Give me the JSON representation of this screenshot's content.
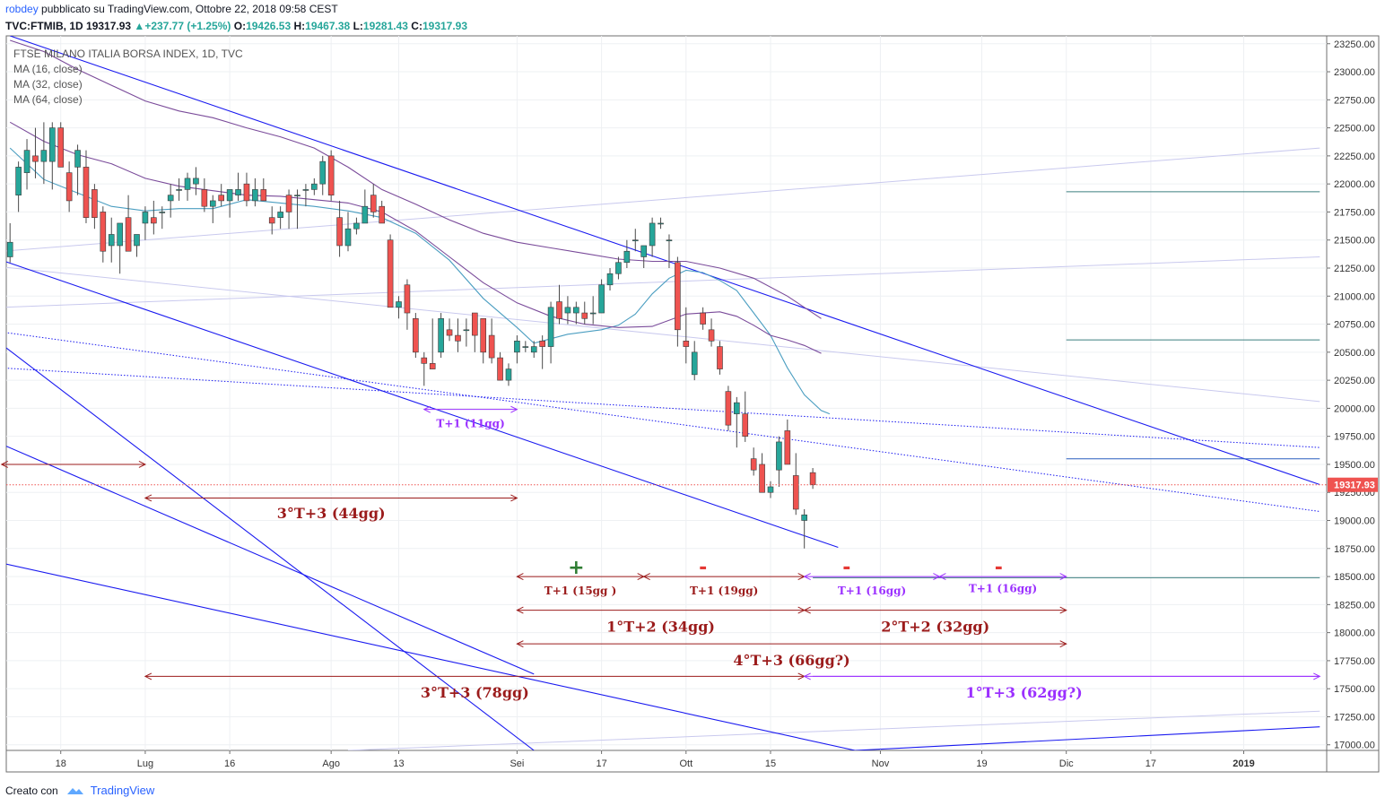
{
  "header": {
    "author": "robdey",
    "published": "pubblicato su TradingView.com, Ottobre 22, 2018 09:58 CEST",
    "symbol": "TVC:FTMIB, 1D",
    "last": "19317.93",
    "change": "+237.77 (+1.25%)",
    "o_label": "O:",
    "o": "19426.53",
    "h_label": "H:",
    "h": "19467.38",
    "l_label": "L:",
    "l": "19281.43",
    "c_label": "C:",
    "c": "19317.93"
  },
  "legend": {
    "title": "FTSE MILANO ITALIA BORSA INDEX, 1D, TVC",
    "ma1": "MA (16, close)",
    "ma2": "MA (32, close)",
    "ma3": "MA (64, close)"
  },
  "footer": {
    "created": "Creato con",
    "brand": "TradingView"
  },
  "colors": {
    "up": "#26a69a",
    "down": "#ef5350",
    "channel": "#1a1af0",
    "label_dark": "#9b1b1b",
    "label_purple": "#9b30ff",
    "ma16": "#4b9ec1",
    "ma32": "#7a4b9a",
    "ma64": "#7a4b9a",
    "last_price": "#ef5350"
  },
  "chart_data": {
    "type": "candlestick",
    "ylim": [
      16950,
      23320
    ],
    "y_ticks": [
      "23250.00",
      "23000.00",
      "22750.00",
      "22500.00",
      "22250.00",
      "22000.00",
      "21750.00",
      "21500.00",
      "21250.00",
      "21000.00",
      "20750.00",
      "20500.00",
      "20250.00",
      "20000.00",
      "19750.00",
      "19500.00",
      "19250.00",
      "19000.00",
      "18750.00",
      "18500.00",
      "18250.00",
      "18000.00",
      "17750.00",
      "17500.00",
      "17250.00",
      "17000.00"
    ],
    "x_ticks": [
      {
        "label": "18",
        "i": 6
      },
      {
        "label": "Lug",
        "i": 16
      },
      {
        "label": "16",
        "i": 26
      },
      {
        "label": "Ago",
        "i": 38
      },
      {
        "label": "13",
        "i": 46
      },
      {
        "label": "Sei",
        "i": 60
      },
      {
        "label": "17",
        "i": 70
      },
      {
        "label": "Ott",
        "i": 80
      },
      {
        "label": "15",
        "i": 90
      },
      {
        "label": "Nov",
        "i": 103
      },
      {
        "label": "19",
        "i": 115
      },
      {
        "label": "Dic",
        "i": 125
      },
      {
        "label": "17",
        "i": 135
      },
      {
        "label": "2019",
        "i": 146
      }
    ],
    "last_price": 19317.93,
    "last_price_label": "19317.93",
    "candles": [
      [
        21350,
        21650,
        21300,
        21480
      ],
      [
        21900,
        22200,
        21750,
        22150
      ],
      [
        22100,
        22400,
        21950,
        22300
      ],
      [
        22250,
        22500,
        22050,
        22200
      ],
      [
        22200,
        22550,
        22000,
        22300
      ],
      [
        22200,
        22550,
        21950,
        22500
      ],
      [
        22500,
        22550,
        22150,
        22150
      ],
      [
        22100,
        22200,
        21750,
        21850
      ],
      [
        22150,
        22350,
        21900,
        22300
      ],
      [
        22150,
        22300,
        21650,
        21700
      ],
      [
        21950,
        22000,
        21600,
        21700
      ],
      [
        21750,
        21800,
        21300,
        21400
      ],
      [
        21450,
        21700,
        21300,
        21550
      ],
      [
        21450,
        21600,
        21200,
        21650
      ],
      [
        21700,
        21900,
        21400,
        21400
      ],
      [
        21450,
        21550,
        21350,
        21550
      ],
      [
        21650,
        21800,
        21500,
        21750
      ],
      [
        21700,
        21850,
        21550,
        21650
      ],
      [
        21750,
        21800,
        21600,
        21750
      ],
      [
        21850,
        22000,
        21700,
        21900
      ],
      [
        21950,
        22050,
        21850,
        21950
      ],
      [
        21950,
        22100,
        21850,
        22050
      ],
      [
        22000,
        22150,
        21900,
        22050
      ],
      [
        21950,
        22050,
        21750,
        21800
      ],
      [
        21800,
        21900,
        21650,
        21850
      ],
      [
        21900,
        22000,
        21800,
        21850
      ],
      [
        21850,
        21950,
        21700,
        21950
      ],
      [
        21900,
        22100,
        21850,
        21950
      ],
      [
        22000,
        22100,
        21800,
        21850
      ],
      [
        21850,
        22050,
        21800,
        21950
      ],
      [
        21950,
        22050,
        21850,
        21850
      ],
      [
        21700,
        21800,
        21550,
        21650
      ],
      [
        21700,
        21800,
        21600,
        21750
      ],
      [
        21900,
        21950,
        21600,
        21750
      ],
      [
        21900,
        21950,
        21600,
        21900
      ],
      [
        21950,
        22000,
        21800,
        21950
      ],
      [
        21950,
        22050,
        21900,
        22000
      ],
      [
        22000,
        22250,
        21900,
        22200
      ],
      [
        22250,
        22300,
        21850,
        21900
      ],
      [
        21700,
        21850,
        21350,
        21450
      ],
      [
        21450,
        21750,
        21400,
        21600
      ],
      [
        21600,
        21700,
        21550,
        21650
      ],
      [
        21650,
        21950,
        21650,
        21800
      ],
      [
        21900,
        22000,
        21700,
        21750
      ],
      [
        21800,
        21850,
        21650,
        21650
      ],
      [
        21500,
        21550,
        20900,
        20900
      ],
      [
        20900,
        21000,
        20800,
        20950
      ],
      [
        21100,
        21150,
        20700,
        20850
      ],
      [
        20800,
        20850,
        20450,
        20500
      ],
      [
        20450,
        20500,
        20200,
        20400
      ],
      [
        20400,
        20800,
        20350,
        20350
      ],
      [
        20500,
        20850,
        20450,
        20800
      ],
      [
        20700,
        20800,
        20600,
        20650
      ],
      [
        20650,
        20800,
        20500,
        20600
      ],
      [
        20700,
        20800,
        20550,
        20700
      ],
      [
        20850,
        20850,
        20500,
        20650
      ],
      [
        20800,
        20800,
        20400,
        20500
      ],
      [
        20650,
        20800,
        20400,
        20450
      ],
      [
        20450,
        20500,
        20250,
        20250
      ],
      [
        20250,
        20400,
        20200,
        20350
      ],
      [
        20500,
        20650,
        20400,
        20600
      ],
      [
        20550,
        20600,
        20500,
        20550
      ],
      [
        20500,
        20600,
        20450,
        20550
      ],
      [
        20600,
        20650,
        20350,
        20550
      ],
      [
        20550,
        20950,
        20400,
        20900
      ],
      [
        20950,
        21100,
        20750,
        20800
      ],
      [
        20850,
        21000,
        20750,
        20900
      ],
      [
        20850,
        20950,
        20750,
        20900
      ],
      [
        20850,
        20950,
        20750,
        20800
      ],
      [
        20850,
        21000,
        20750,
        20850
      ],
      [
        20850,
        21150,
        20850,
        21100
      ],
      [
        21100,
        21250,
        21050,
        21200
      ],
      [
        21200,
        21350,
        21150,
        21300
      ],
      [
        21300,
        21500,
        21250,
        21400
      ],
      [
        21500,
        21600,
        21400,
        21500
      ],
      [
        21350,
        21450,
        21250,
        21450
      ],
      [
        21450,
        21700,
        21350,
        21650
      ],
      [
        21650,
        21700,
        21600,
        21650
      ],
      [
        21500,
        21550,
        21250,
        21500
      ],
      [
        21300,
        21350,
        20550,
        20700
      ],
      [
        20600,
        20900,
        20400,
        20550
      ],
      [
        20300,
        20600,
        20250,
        20500
      ],
      [
        20850,
        20900,
        20700,
        20750
      ],
      [
        20700,
        20800,
        20550,
        20600
      ],
      [
        20550,
        20600,
        20300,
        20350
      ],
      [
        20150,
        20200,
        19800,
        19850
      ],
      [
        19950,
        20100,
        19650,
        20050
      ],
      [
        19950,
        20150,
        19700,
        19750
      ],
      [
        19550,
        19650,
        19400,
        19450
      ],
      [
        19500,
        19600,
        19250,
        19250
      ],
      [
        19250,
        19350,
        19200,
        19300
      ],
      [
        19450,
        19750,
        19300,
        19700
      ],
      [
        19800,
        19900,
        19500,
        19500
      ],
      [
        19400,
        19600,
        19050,
        19100
      ],
      [
        19000,
        19100,
        18750,
        19050
      ],
      [
        19426.53,
        19467.38,
        19281.43,
        19317.93
      ]
    ],
    "ma": [
      {
        "name": "MA (16, close)",
        "color": "#4b9ec1",
        "points": [
          [
            0,
            22320
          ],
          [
            2,
            22180
          ],
          [
            4,
            22040
          ],
          [
            8,
            21920
          ],
          [
            12,
            21800
          ],
          [
            16,
            21760
          ],
          [
            20,
            21780
          ],
          [
            24,
            21780
          ],
          [
            28,
            21860
          ],
          [
            32,
            21830
          ],
          [
            36,
            21800
          ],
          [
            40,
            21760
          ],
          [
            44,
            21700
          ],
          [
            48,
            21560
          ],
          [
            52,
            21320
          ],
          [
            56,
            20980
          ],
          [
            60,
            20720
          ],
          [
            62,
            20580
          ],
          [
            64,
            20620
          ],
          [
            66,
            20660
          ],
          [
            68,
            20680
          ],
          [
            70,
            20700
          ],
          [
            72,
            20740
          ],
          [
            74,
            20840
          ],
          [
            76,
            21020
          ],
          [
            78,
            21160
          ],
          [
            80,
            21230
          ],
          [
            82,
            21210
          ],
          [
            84,
            21140
          ],
          [
            86,
            21050
          ],
          [
            88,
            20850
          ],
          [
            90,
            20650
          ],
          [
            92,
            20360
          ],
          [
            94,
            20120
          ],
          [
            96,
            19980
          ],
          [
            97,
            19950
          ]
        ]
      },
      {
        "name": "MA (32, close)",
        "color": "#7a4b9a",
        "points": [
          [
            0,
            22550
          ],
          [
            4,
            22380
          ],
          [
            8,
            22260
          ],
          [
            12,
            22180
          ],
          [
            16,
            22050
          ],
          [
            20,
            21980
          ],
          [
            24,
            21940
          ],
          [
            28,
            21900
          ],
          [
            32,
            21890
          ],
          [
            36,
            21860
          ],
          [
            40,
            21830
          ],
          [
            44,
            21750
          ],
          [
            48,
            21580
          ],
          [
            52,
            21350
          ],
          [
            56,
            21120
          ],
          [
            60,
            20940
          ],
          [
            64,
            20820
          ],
          [
            68,
            20750
          ],
          [
            72,
            20720
          ],
          [
            76,
            20730
          ],
          [
            80,
            20840
          ],
          [
            84,
            20860
          ],
          [
            86,
            20820
          ],
          [
            88,
            20740
          ],
          [
            90,
            20650
          ],
          [
            92,
            20610
          ],
          [
            94,
            20560
          ],
          [
            96,
            20490
          ]
        ]
      },
      {
        "name": "MA (64, close)",
        "color": "#7a4b9a",
        "points": [
          [
            0,
            23280
          ],
          [
            4,
            23180
          ],
          [
            8,
            23020
          ],
          [
            12,
            22880
          ],
          [
            16,
            22740
          ],
          [
            20,
            22650
          ],
          [
            24,
            22590
          ],
          [
            28,
            22500
          ],
          [
            32,
            22420
          ],
          [
            36,
            22320
          ],
          [
            40,
            22150
          ],
          [
            44,
            21950
          ],
          [
            48,
            21820
          ],
          [
            52,
            21680
          ],
          [
            56,
            21560
          ],
          [
            60,
            21480
          ],
          [
            64,
            21430
          ],
          [
            68,
            21380
          ],
          [
            72,
            21330
          ],
          [
            76,
            21310
          ],
          [
            80,
            21310
          ],
          [
            84,
            21250
          ],
          [
            88,
            21160
          ],
          [
            92,
            21000
          ],
          [
            96,
            20800
          ]
        ]
      }
    ],
    "channels": [
      {
        "i1": 0,
        "p1": 23320,
        "i2": 155,
        "p2": 19320,
        "style": "solid"
      },
      {
        "i1": -1,
        "p1": 21320,
        "i2": 98,
        "p2": 18760,
        "style": "solid"
      },
      {
        "i1": -1,
        "p1": 20570,
        "i2": 62,
        "p2": 16950,
        "style": "solid"
      },
      {
        "i1": -1,
        "p1": 19680,
        "i2": 62,
        "p2": 17630,
        "style": "solid"
      },
      {
        "i1": -1,
        "p1": 18620,
        "i2": 100,
        "p2": 16950,
        "style": "solid"
      },
      {
        "i1": 100,
        "p1": 16950,
        "i2": 155,
        "p2": 17160,
        "style": "solid"
      },
      {
        "i1": -1,
        "p1": 20680,
        "i2": 155,
        "p2": 19080,
        "style": "dotted"
      },
      {
        "i1": -1,
        "p1": 20360,
        "i2": 155,
        "p2": 19650,
        "style": "dotted"
      }
    ],
    "faint_lines": [
      {
        "i1": -1,
        "p1": 21400,
        "i2": 155,
        "p2": 22320
      },
      {
        "i1": -1,
        "p1": 21260,
        "i2": 155,
        "p2": 20060
      },
      {
        "i1": -1,
        "p1": 20900,
        "i2": 155,
        "p2": 21350
      },
      {
        "i1": 40,
        "p1": 16950,
        "i2": 155,
        "p2": 17300
      }
    ],
    "hlines": [
      {
        "i1": 125,
        "i2": 155,
        "p": 21930,
        "color": "#3c7f7f"
      },
      {
        "i1": 125,
        "i2": 155,
        "p": 20610,
        "color": "#3c7f7f"
      },
      {
        "i1": 125,
        "i2": 155,
        "p": 19550,
        "color": "#2a5fbf"
      },
      {
        "i1": 95,
        "i2": 155,
        "p": 18490,
        "color": "#3c7f7f"
      },
      {
        "i1": 95,
        "i2": 155,
        "p": 17610,
        "color": "#9b30ff"
      }
    ],
    "spans": [
      {
        "i1": -1,
        "i2": 16,
        "p": 19500,
        "color": "#9b1b1b",
        "label": "",
        "lp": 0
      },
      {
        "i1": 16,
        "i2": 60,
        "p": 19200,
        "color": "#9b1b1b",
        "label": "3°T+3 (44gg)",
        "lp": 19060,
        "size": 16
      },
      {
        "i1": 49,
        "i2": 60,
        "p": 19990,
        "color": "#9b30ff",
        "label": "T+1 (11gg)",
        "lp": 19870,
        "size": 12
      },
      {
        "i1": 60,
        "i2": 75,
        "p": 18500,
        "color": "#9b1b1b",
        "label": "T+1 (15gg )",
        "lp": 18380,
        "size": 12
      },
      {
        "i1": 75,
        "i2": 94,
        "p": 18500,
        "color": "#9b1b1b",
        "label": "T+1 (19gg)",
        "lp": 18380,
        "size": 12
      },
      {
        "i1": 94,
        "i2": 110,
        "p": 18500,
        "color": "#9b30ff",
        "label": "T+1 (16gg)",
        "lp": 18380,
        "size": 12
      },
      {
        "i1": 110,
        "i2": 125,
        "p": 18500,
        "color": "#9b30ff",
        "label": "T+1 (16gg)",
        "lp": 18400,
        "size": 12
      },
      {
        "i1": 60,
        "i2": 94,
        "p": 18200,
        "color": "#9b1b1b",
        "label": "1°T+2 (34gg)",
        "lp": 18050,
        "size": 16
      },
      {
        "i1": 94,
        "i2": 125,
        "p": 18200,
        "color": "#9b1b1b",
        "label": "2°T+2 (32gg)",
        "lp": 18050,
        "size": 16
      },
      {
        "i1": 60,
        "i2": 125,
        "p": 17900,
        "color": "#9b1b1b",
        "label": "4°T+3 (66gg?)",
        "lp": 17750,
        "size": 16
      },
      {
        "i1": 16,
        "i2": 94,
        "p": 17610,
        "color": "#9b1b1b",
        "label": "3°T+3 (78gg)",
        "lp": 17460,
        "size": 16
      },
      {
        "i1": 94,
        "i2": 155,
        "p": 17610,
        "color": "#9b30ff",
        "label": "1°T+3 (62gg?)",
        "lp": 17460,
        "size": 16,
        "lx": 120
      }
    ],
    "marks": [
      {
        "i": 67,
        "p": 18580,
        "text": "+",
        "color": "#2e7d32"
      },
      {
        "i": 82,
        "p": 18580,
        "text": "-",
        "color": "#e53935"
      },
      {
        "i": 99,
        "p": 18580,
        "text": "-",
        "color": "#e53935"
      },
      {
        "i": 117,
        "p": 18580,
        "text": "-",
        "color": "#e53935"
      }
    ]
  }
}
